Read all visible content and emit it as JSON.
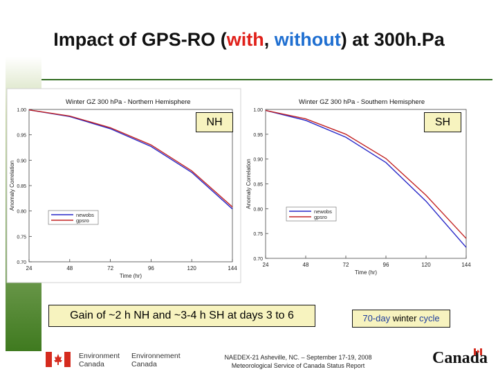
{
  "slide": {
    "title_pre": "Impact of GPS-RO (",
    "title_with": "with",
    "title_comma": ", ",
    "title_without": "without",
    "title_post": ") at 300h.Pa",
    "nh_label": "NH",
    "sh_label": "SH",
    "gain_text": "Gain of ~2 h NH and ~3-4 h SH at days 3 to 6",
    "cycle_prefix": "70-day ",
    "cycle_bold": "winter",
    "cycle_suffix": " cycle",
    "footer_line1": "NAEDEX-21 Asheville, NC. – September 17-19, 2008",
    "footer_line2": "Meteorological Service of Canada Status Report",
    "dept_en_1": "Environment",
    "dept_en_2": "Canada",
    "dept_fr_1": "Environnement",
    "dept_fr_2": "Canada",
    "canada_wordmark": "Canada"
  },
  "colors": {
    "with": "#e0201a",
    "without": "#1f6fd1",
    "newobs": "#2727c7",
    "gpsro": "#c22222",
    "accent_green": "#3f7a1f",
    "callout_bg": "#f7f3bf"
  },
  "chart_data": [
    {
      "type": "line",
      "title": "Winter GZ 300 hPa - Northern Hemisphere",
      "xlabel": "Time (hr)",
      "ylabel": "Anomaly Correlation",
      "x": [
        24,
        48,
        72,
        96,
        120,
        144
      ],
      "xticks": [
        "24",
        "48",
        "72",
        "96",
        "120",
        "144"
      ],
      "yticks": [
        "1.00",
        "0.95",
        "0.90",
        "0.85",
        "0.80",
        "0.75",
        "0.70"
      ],
      "xlim": [
        24,
        144
      ],
      "ylim": [
        0.7,
        1.0
      ],
      "legend": "lower-left",
      "series": [
        {
          "name": "newobs",
          "values": [
            0.999,
            0.986,
            0.962,
            0.927,
            0.876,
            0.804
          ]
        },
        {
          "name": "gpsro",
          "values": [
            0.999,
            0.987,
            0.964,
            0.93,
            0.879,
            0.808
          ]
        }
      ]
    },
    {
      "type": "line",
      "title": "Winter GZ 300 hPa - Southern Hemisphere",
      "xlabel": "Time (hr)",
      "ylabel": "Anomaly Correlation",
      "x": [
        24,
        48,
        72,
        96,
        120,
        144
      ],
      "xticks": [
        "24",
        "48",
        "72",
        "96",
        "120",
        "144"
      ],
      "yticks": [
        "1.00",
        "0.95",
        "0.90",
        "0.85",
        "0.80",
        "0.75",
        "0.70"
      ],
      "xlim": [
        24,
        144
      ],
      "ylim": [
        0.7,
        1.0
      ],
      "legend": "lower-left",
      "series": [
        {
          "name": "newobs",
          "values": [
            0.998,
            0.978,
            0.944,
            0.893,
            0.815,
            0.722
          ]
        },
        {
          "name": "gpsro",
          "values": [
            0.998,
            0.981,
            0.95,
            0.901,
            0.827,
            0.74
          ]
        }
      ]
    }
  ]
}
